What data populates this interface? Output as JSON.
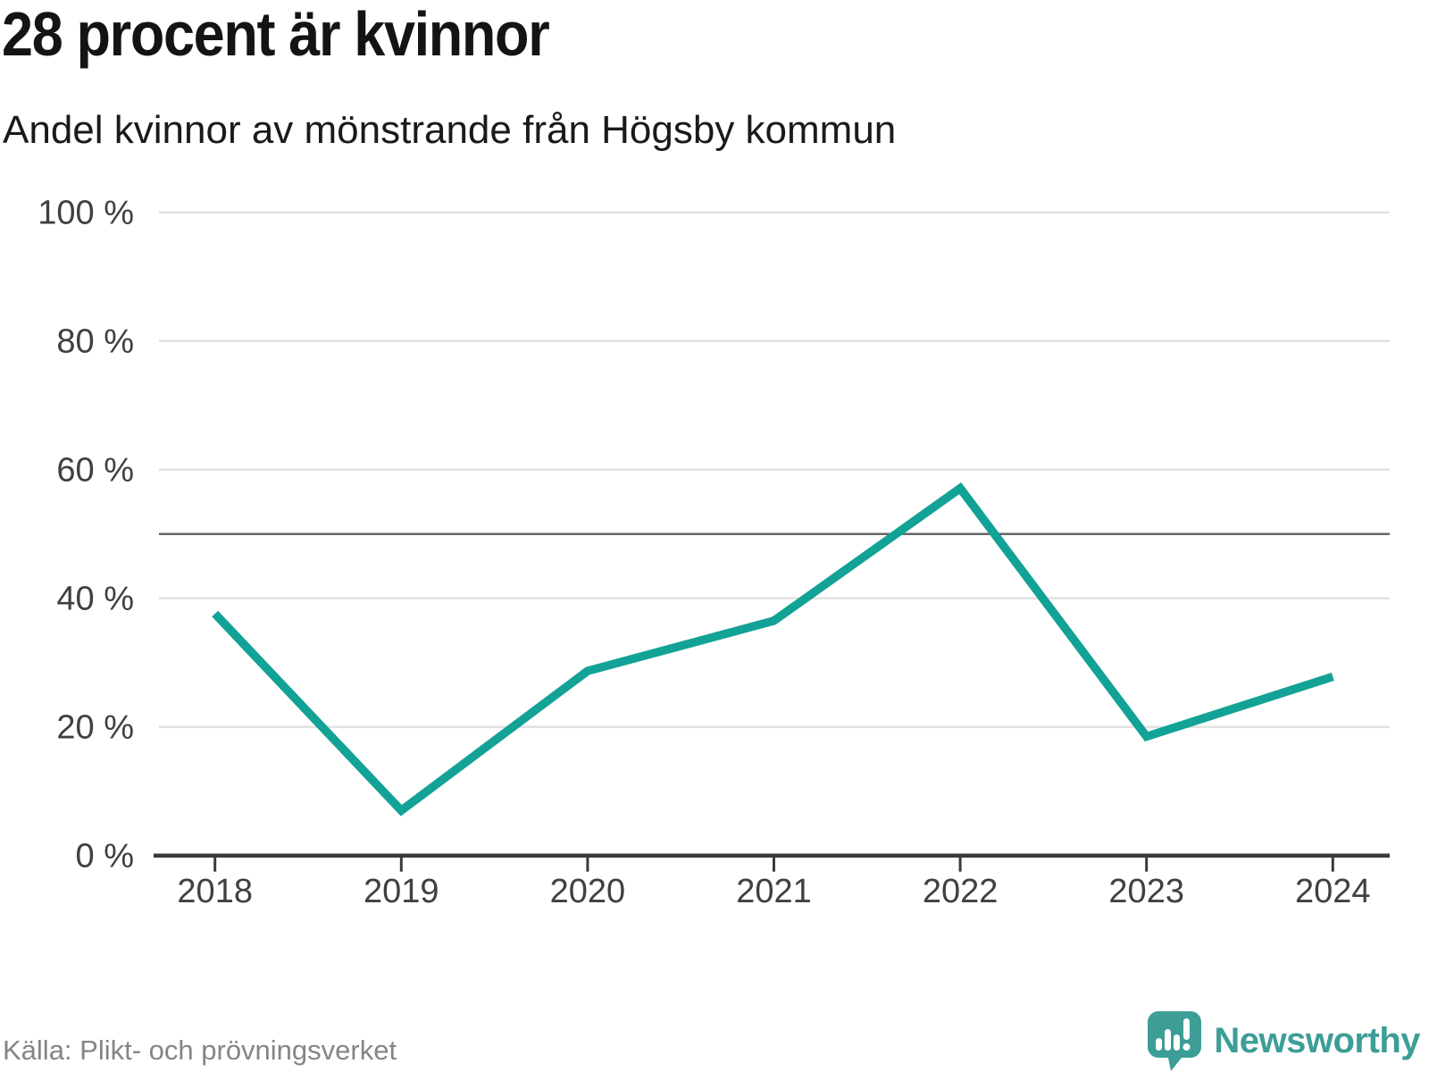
{
  "header": {
    "title": "28 procent är kvinnor",
    "subtitle": "Andel kvinnor av mönstrande från Högsby kommun"
  },
  "footer": {
    "source": "Källa: Plikt- och prövningsverket",
    "brand": "Newsworthy"
  },
  "colors": {
    "line": "#12a296",
    "grid": "#e2e2e2",
    "reference_line": "#666666",
    "axis": "#3b3b3b",
    "tick_label": "#404040",
    "brand_teal": "#3c9e96",
    "title": "#141414",
    "source": "#858585"
  },
  "chart_data": {
    "type": "line",
    "title": "28 procent är kvinnor",
    "subtitle": "Andel kvinnor av mönstrande från Högsby kommun",
    "x": [
      2018,
      2019,
      2020,
      2021,
      2022,
      2023,
      2024
    ],
    "series": [
      {
        "name": "Andel kvinnor av mönstrande",
        "values": [
          37.6,
          7,
          28.7,
          36.5,
          57.1,
          18.5,
          27.8
        ],
        "color": "#12a296"
      }
    ],
    "unit": "%",
    "ylim": [
      0,
      100
    ],
    "yticks": [
      {
        "value": 100,
        "label": "100 %"
      },
      {
        "value": 80,
        "label": "80 %"
      },
      {
        "value": 60,
        "label": "60 %"
      },
      {
        "value": 40,
        "label": "40 %"
      },
      {
        "value": 20,
        "label": "20 %"
      },
      {
        "value": 0,
        "label": "0 %"
      }
    ],
    "reference_line": 50,
    "grid": true,
    "legend": "none",
    "source": "Källa: Plikt- och prövningsverket"
  }
}
